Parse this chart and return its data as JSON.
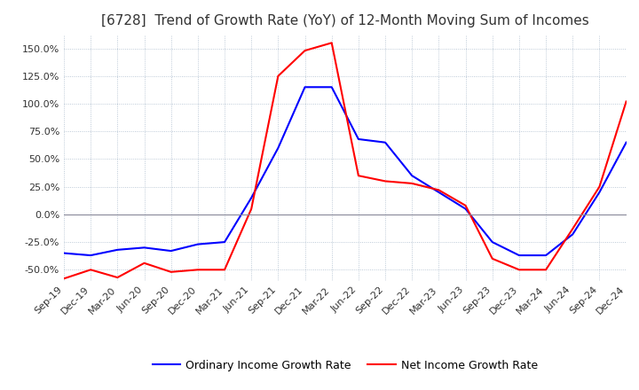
{
  "title": "[6728]  Trend of Growth Rate (YoY) of 12-Month Moving Sum of Incomes",
  "title_fontsize": 11,
  "ylim": [
    -60,
    162
  ],
  "yticks": [
    -50,
    -25,
    0,
    25,
    50,
    75,
    100,
    125,
    150
  ],
  "legend_labels": [
    "Ordinary Income Growth Rate",
    "Net Income Growth Rate"
  ],
  "line_colors": [
    "#0000FF",
    "#FF0000"
  ],
  "background_color": "#FFFFFF",
  "grid_color": "#AABBCC",
  "x_labels": [
    "Sep-19",
    "Dec-19",
    "Mar-20",
    "Jun-20",
    "Sep-20",
    "Dec-20",
    "Mar-21",
    "Jun-21",
    "Sep-21",
    "Dec-21",
    "Mar-22",
    "Jun-22",
    "Sep-22",
    "Dec-22",
    "Mar-23",
    "Jun-23",
    "Sep-23",
    "Dec-23",
    "Mar-24",
    "Jun-24",
    "Sep-24",
    "Dec-24"
  ],
  "ordinary_income": [
    -35,
    -37,
    -32,
    -30,
    -33,
    -27,
    -25,
    15,
    60,
    115,
    115,
    68,
    65,
    35,
    20,
    5,
    -25,
    -37,
    -37,
    -18,
    20,
    65
  ],
  "net_income": [
    -58,
    -50,
    -57,
    -44,
    -52,
    -50,
    -50,
    5,
    125,
    148,
    155,
    35,
    30,
    28,
    22,
    8,
    -40,
    -50,
    -50,
    -13,
    25,
    102
  ]
}
